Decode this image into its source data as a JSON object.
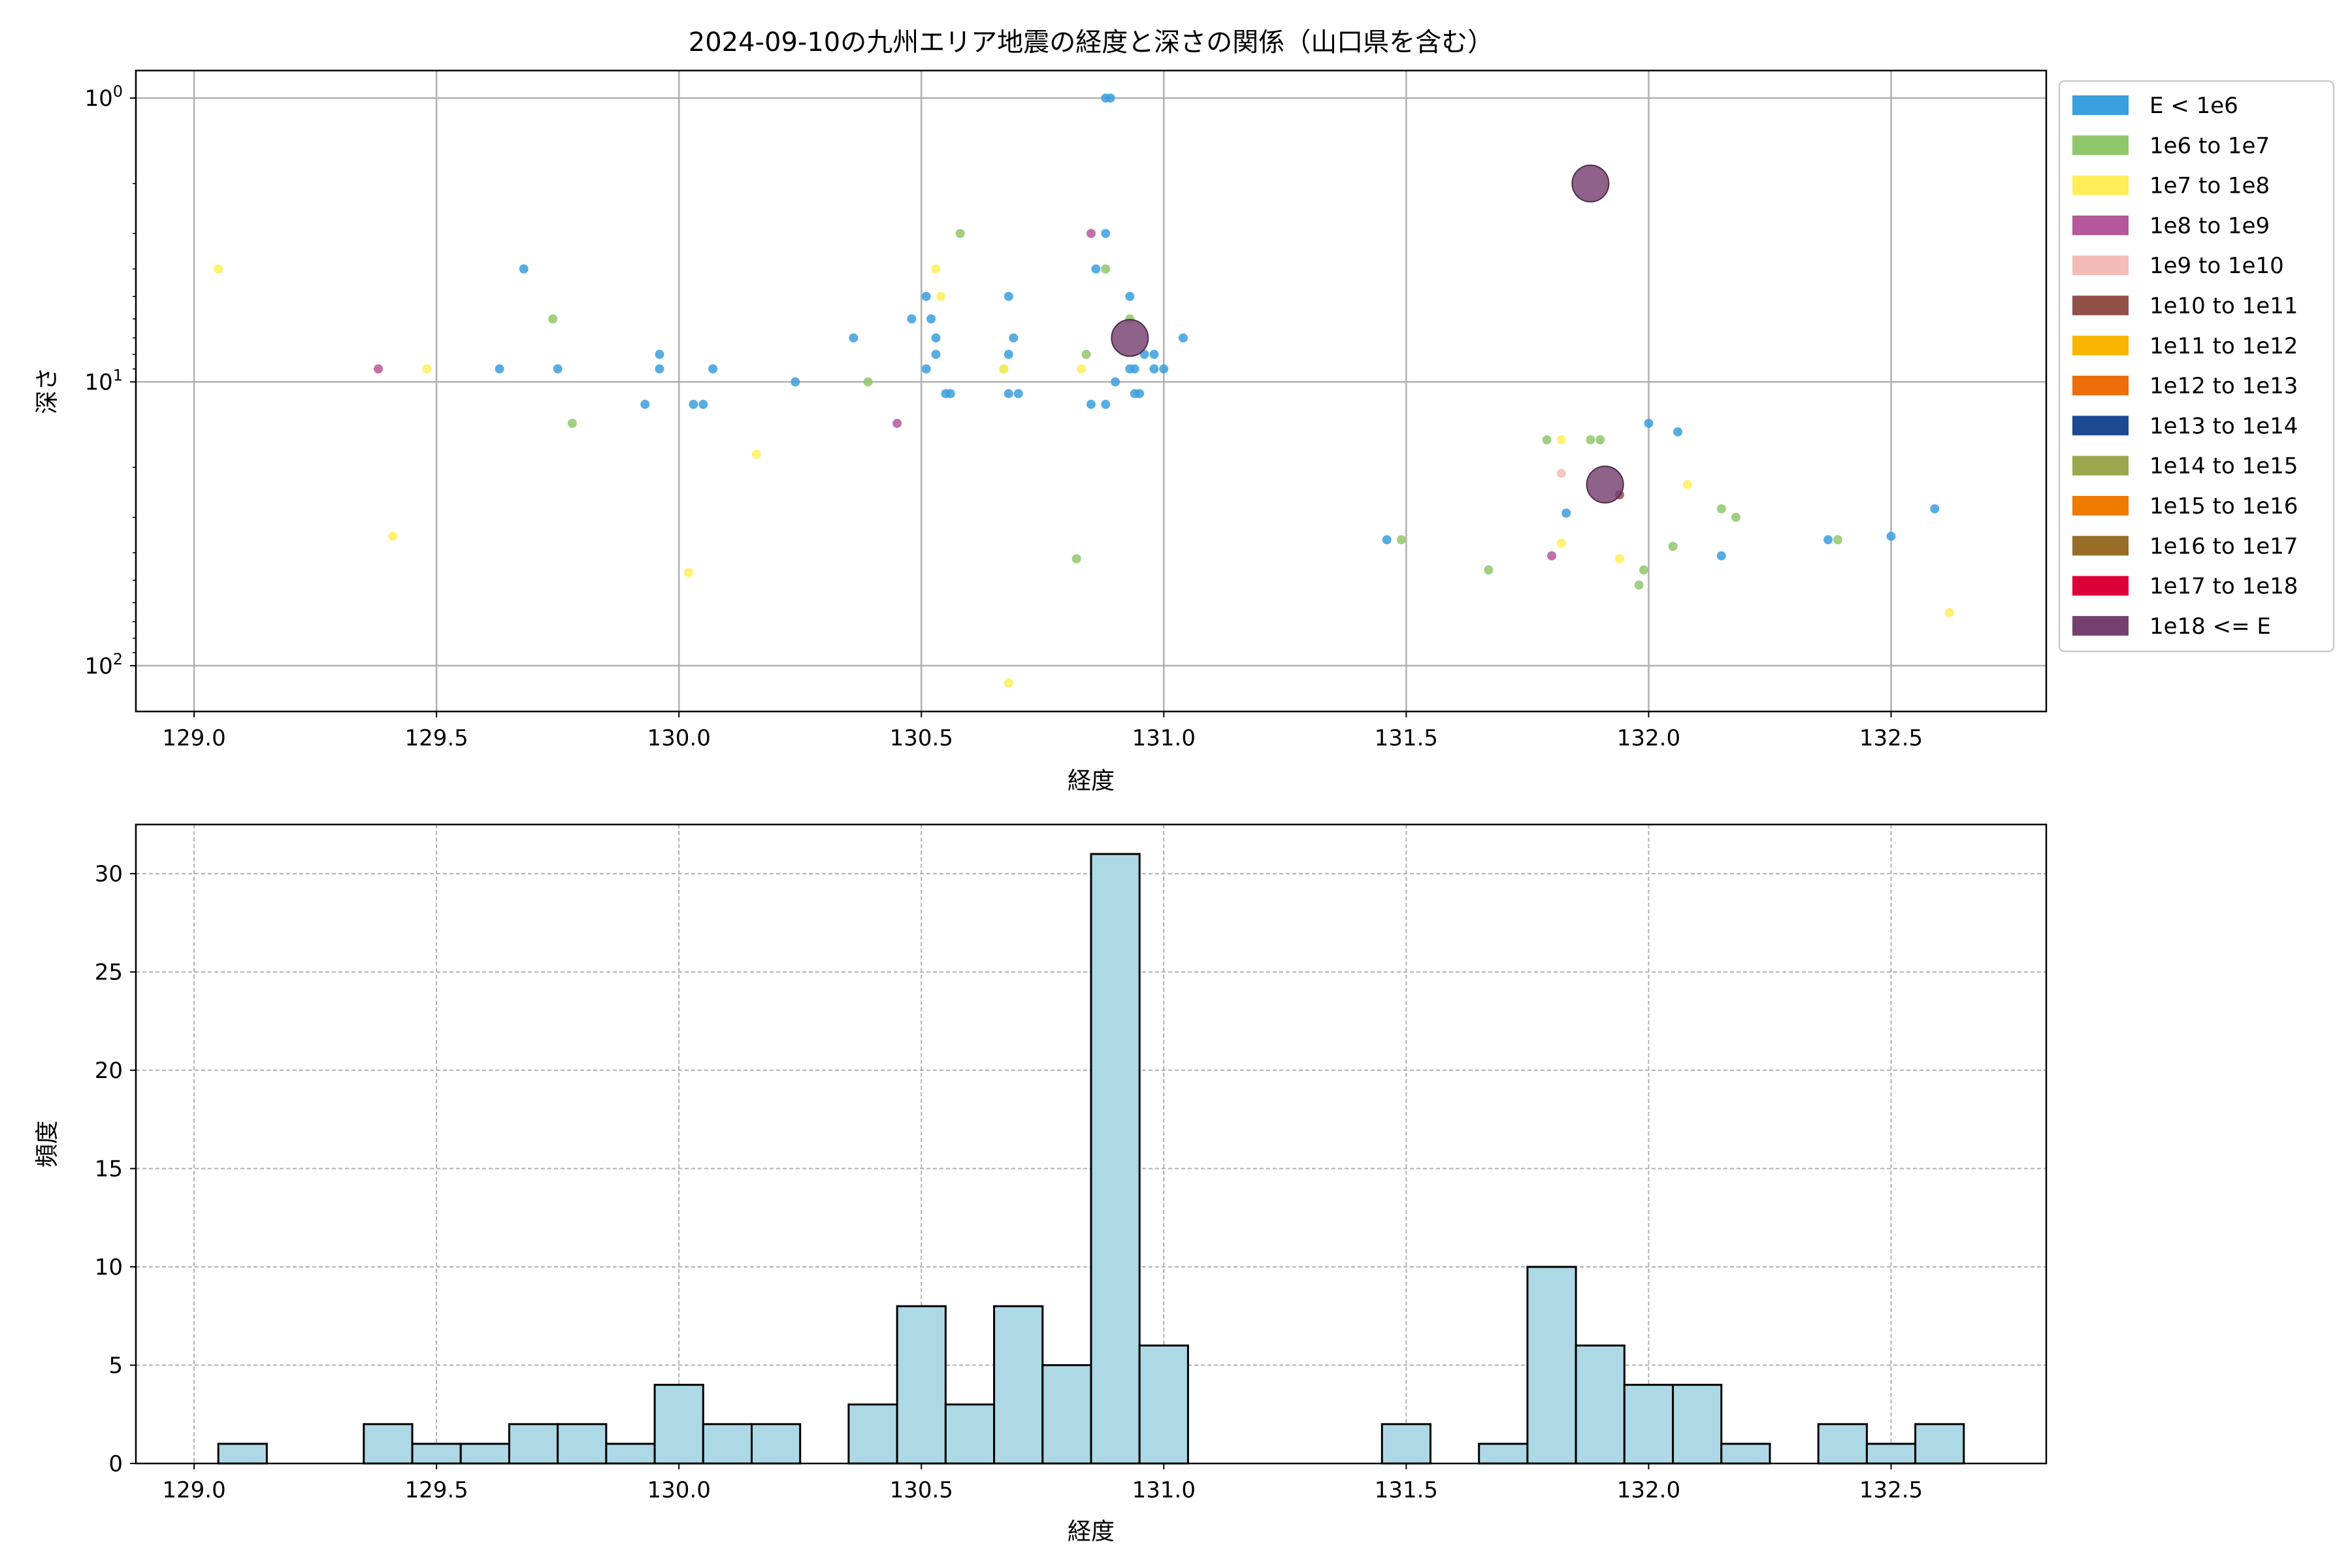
{
  "chart_data": [
    {
      "type": "scatter",
      "title": "2024-09-10の九州エリア地震の経度と深さの関係（山口県を含む）",
      "xlabel": "経度",
      "ylabel": "深さ",
      "xlim": [
        128.88,
        132.82
      ],
      "ylim": [
        145,
        0.8
      ],
      "yscale": "log",
      "y_inverted": true,
      "grid": true,
      "x_ticks": [
        "129.0",
        "129.5",
        "130.0",
        "130.5",
        "131.0",
        "131.5",
        "132.0",
        "132.5"
      ],
      "x_tick_values": [
        129.0,
        129.5,
        130.0,
        130.5,
        131.0,
        131.5,
        132.0,
        132.5
      ],
      "y_ticks": [
        {
          "value": 1,
          "base": "10",
          "exp": "0"
        },
        {
          "value": 10,
          "base": "10",
          "exp": "1"
        },
        {
          "value": 100,
          "base": "10",
          "exp": "2"
        }
      ],
      "legend_position": "outside right, top",
      "legend": [
        {
          "label": "E < 1e6",
          "color": "#3a9fdd"
        },
        {
          "label": "1e6 to 1e7",
          "color": "#8fc76a"
        },
        {
          "label": "1e7 to 1e8",
          "color": "#ffee58"
        },
        {
          "label": "1e8 to 1e9",
          "color": "#b5589b"
        },
        {
          "label": "1e9 to 1e10",
          "color": "#f5bcb5"
        },
        {
          "label": "1e10 to 1e11",
          "color": "#925049"
        },
        {
          "label": "1e11 to 1e12",
          "color": "#f8b600"
        },
        {
          "label": "1e12 to 1e13",
          "color": "#ed6d0a"
        },
        {
          "label": "1e13 to 1e14",
          "color": "#1b4a93"
        },
        {
          "label": "1e14 to 1e15",
          "color": "#9ba84e"
        },
        {
          "label": "1e15 to 1e16",
          "color": "#ee7a00"
        },
        {
          "label": "1e16 to 1e17",
          "color": "#976d27"
        },
        {
          "label": "1e17 to 1e18",
          "color": "#dd0038"
        },
        {
          "label": "1e18 <= E",
          "color": "#75406f"
        }
      ],
      "points": [
        {
          "x": 129.05,
          "y": 4,
          "c": 2,
          "s": 1
        },
        {
          "x": 129.38,
          "y": 9,
          "c": 3,
          "s": 1
        },
        {
          "x": 129.41,
          "y": 35,
          "c": 2,
          "s": 1
        },
        {
          "x": 129.48,
          "y": 9,
          "c": 2,
          "s": 1
        },
        {
          "x": 129.63,
          "y": 9,
          "c": 0,
          "s": 1
        },
        {
          "x": 129.68,
          "y": 4,
          "c": 0,
          "s": 1
        },
        {
          "x": 129.74,
          "y": 6,
          "c": 1,
          "s": 1
        },
        {
          "x": 129.75,
          "y": 9,
          "c": 0,
          "s": 1
        },
        {
          "x": 129.78,
          "y": 14,
          "c": 1,
          "s": 1
        },
        {
          "x": 129.93,
          "y": 12,
          "c": 0,
          "s": 1
        },
        {
          "x": 129.96,
          "y": 8,
          "c": 0,
          "s": 1
        },
        {
          "x": 129.96,
          "y": 9,
          "c": 0,
          "s": 1
        },
        {
          "x": 130.02,
          "y": 47,
          "c": 2,
          "s": 1
        },
        {
          "x": 130.03,
          "y": 12,
          "c": 0,
          "s": 1
        },
        {
          "x": 130.05,
          "y": 12,
          "c": 0,
          "s": 1
        },
        {
          "x": 130.07,
          "y": 9,
          "c": 0,
          "s": 1
        },
        {
          "x": 130.16,
          "y": 18,
          "c": 2,
          "s": 1
        },
        {
          "x": 130.24,
          "y": 10,
          "c": 0,
          "s": 1
        },
        {
          "x": 130.36,
          "y": 7,
          "c": 0,
          "s": 1
        },
        {
          "x": 130.39,
          "y": 10,
          "c": 1,
          "s": 1
        },
        {
          "x": 130.45,
          "y": 14,
          "c": 3,
          "s": 1
        },
        {
          "x": 130.48,
          "y": 6,
          "c": 0,
          "s": 1
        },
        {
          "x": 130.51,
          "y": 5,
          "c": 0,
          "s": 1
        },
        {
          "x": 130.51,
          "y": 9,
          "c": 0,
          "s": 1
        },
        {
          "x": 130.52,
          "y": 6,
          "c": 0,
          "s": 1
        },
        {
          "x": 130.53,
          "y": 7,
          "c": 0,
          "s": 1
        },
        {
          "x": 130.53,
          "y": 8,
          "c": 0,
          "s": 1
        },
        {
          "x": 130.53,
          "y": 4,
          "c": 2,
          "s": 1
        },
        {
          "x": 130.54,
          "y": 5,
          "c": 2,
          "s": 1
        },
        {
          "x": 130.55,
          "y": 11,
          "c": 0,
          "s": 1
        },
        {
          "x": 130.56,
          "y": 11,
          "c": 0,
          "s": 1
        },
        {
          "x": 130.58,
          "y": 3,
          "c": 1,
          "s": 1
        },
        {
          "x": 130.67,
          "y": 9,
          "c": 1,
          "s": 1
        },
        {
          "x": 130.67,
          "y": 9,
          "c": 2,
          "s": 1
        },
        {
          "x": 130.68,
          "y": 5,
          "c": 0,
          "s": 1
        },
        {
          "x": 130.68,
          "y": 8,
          "c": 0,
          "s": 1
        },
        {
          "x": 130.68,
          "y": 11,
          "c": 0,
          "s": 1
        },
        {
          "x": 130.69,
          "y": 7,
          "c": 0,
          "s": 1
        },
        {
          "x": 130.7,
          "y": 11,
          "c": 0,
          "s": 1
        },
        {
          "x": 130.68,
          "y": 115,
          "c": 2,
          "s": 1
        },
        {
          "x": 130.82,
          "y": 42,
          "c": 1,
          "s": 1
        },
        {
          "x": 130.83,
          "y": 9,
          "c": 2,
          "s": 1
        },
        {
          "x": 130.84,
          "y": 8,
          "c": 1,
          "s": 1
        },
        {
          "x": 130.85,
          "y": 12,
          "c": 0,
          "s": 1
        },
        {
          "x": 130.85,
          "y": 3,
          "c": 3,
          "s": 1
        },
        {
          "x": 130.86,
          "y": 4,
          "c": 0,
          "s": 1
        },
        {
          "x": 130.88,
          "y": 1,
          "c": 0,
          "s": 1
        },
        {
          "x": 130.89,
          "y": 1,
          "c": 0,
          "s": 1
        },
        {
          "x": 130.88,
          "y": 3,
          "c": 0,
          "s": 1
        },
        {
          "x": 130.88,
          "y": 4,
          "c": 1,
          "s": 1
        },
        {
          "x": 130.88,
          "y": 12,
          "c": 0,
          "s": 1
        },
        {
          "x": 130.9,
          "y": 10,
          "c": 0,
          "s": 1
        },
        {
          "x": 130.93,
          "y": 5,
          "c": 0,
          "s": 1
        },
        {
          "x": 130.93,
          "y": 6,
          "c": 1,
          "s": 1
        },
        {
          "x": 130.93,
          "y": 9,
          "c": 0,
          "s": 1
        },
        {
          "x": 130.94,
          "y": 9,
          "c": 0,
          "s": 1
        },
        {
          "x": 130.94,
          "y": 11,
          "c": 0,
          "s": 1
        },
        {
          "x": 130.95,
          "y": 11,
          "c": 0,
          "s": 1
        },
        {
          "x": 130.96,
          "y": 8,
          "c": 0,
          "s": 1
        },
        {
          "x": 130.98,
          "y": 8,
          "c": 0,
          "s": 1
        },
        {
          "x": 130.98,
          "y": 9,
          "c": 0,
          "s": 1
        },
        {
          "x": 131.0,
          "y": 9,
          "c": 0,
          "s": 1
        },
        {
          "x": 131.04,
          "y": 7,
          "c": 0,
          "s": 1
        },
        {
          "x": 130.93,
          "y": 7,
          "c": 13,
          "s": 5
        },
        {
          "x": 131.46,
          "y": 36,
          "c": 0,
          "s": 1
        },
        {
          "x": 131.49,
          "y": 36,
          "c": 1,
          "s": 1
        },
        {
          "x": 131.67,
          "y": 46,
          "c": 1,
          "s": 1
        },
        {
          "x": 131.79,
          "y": 16,
          "c": 1,
          "s": 1
        },
        {
          "x": 131.8,
          "y": 41,
          "c": 3,
          "s": 1
        },
        {
          "x": 131.82,
          "y": 16,
          "c": 2,
          "s": 1
        },
        {
          "x": 131.82,
          "y": 21,
          "c": 4,
          "s": 1
        },
        {
          "x": 131.82,
          "y": 37,
          "c": 2,
          "s": 1
        },
        {
          "x": 131.83,
          "y": 29,
          "c": 0,
          "s": 1
        },
        {
          "x": 131.88,
          "y": 2,
          "c": 13,
          "s": 5
        },
        {
          "x": 131.88,
          "y": 16,
          "c": 1,
          "s": 1
        },
        {
          "x": 131.9,
          "y": 16,
          "c": 1,
          "s": 1
        },
        {
          "x": 131.91,
          "y": 23,
          "c": 13,
          "s": 5
        },
        {
          "x": 131.94,
          "y": 25,
          "c": 5,
          "s": 1
        },
        {
          "x": 131.94,
          "y": 42,
          "c": 2,
          "s": 1
        },
        {
          "x": 131.98,
          "y": 52,
          "c": 1,
          "s": 1
        },
        {
          "x": 131.99,
          "y": 46,
          "c": 1,
          "s": 1
        },
        {
          "x": 132.0,
          "y": 14,
          "c": 0,
          "s": 1
        },
        {
          "x": 132.05,
          "y": 38,
          "c": 1,
          "s": 1
        },
        {
          "x": 132.06,
          "y": 15,
          "c": 0,
          "s": 1
        },
        {
          "x": 132.08,
          "y": 23,
          "c": 2,
          "s": 1
        },
        {
          "x": 132.15,
          "y": 28,
          "c": 1,
          "s": 1
        },
        {
          "x": 132.15,
          "y": 41,
          "c": 0,
          "s": 1
        },
        {
          "x": 132.18,
          "y": 30,
          "c": 1,
          "s": 1
        },
        {
          "x": 132.37,
          "y": 36,
          "c": 0,
          "s": 1
        },
        {
          "x": 132.39,
          "y": 36,
          "c": 1,
          "s": 1
        },
        {
          "x": 132.5,
          "y": 35,
          "c": 0,
          "s": 1
        },
        {
          "x": 132.59,
          "y": 28,
          "c": 0,
          "s": 1
        },
        {
          "x": 132.62,
          "y": 65,
          "c": 2,
          "s": 1
        }
      ]
    },
    {
      "type": "bar",
      "title": "",
      "xlabel": "経度",
      "ylabel": "頻度",
      "xlim": [
        128.88,
        132.82
      ],
      "ylim": [
        0,
        32.5
      ],
      "grid": true,
      "grid_style": "dashed",
      "x_ticks": [
        "129.0",
        "129.5",
        "130.0",
        "130.5",
        "131.0",
        "131.5",
        "132.0",
        "132.5"
      ],
      "x_tick_values": [
        129.0,
        129.5,
        130.0,
        130.5,
        131.0,
        131.5,
        132.0,
        132.5
      ],
      "y_ticks": [
        "0",
        "5",
        "10",
        "15",
        "20",
        "25",
        "30"
      ],
      "y_tick_values": [
        0,
        5,
        10,
        15,
        20,
        25,
        30
      ],
      "bar_color": "#add8e6",
      "bar_edge": "#000000",
      "bin_start": 129.05,
      "bin_width": 0.1,
      "values": [
        1,
        0,
        0,
        2,
        1,
        1,
        2,
        2,
        1,
        4,
        2,
        2,
        0,
        3,
        8,
        3,
        8,
        5,
        31,
        6,
        0,
        0,
        0,
        0,
        2,
        0,
        1,
        10,
        6,
        4,
        4,
        1,
        0,
        2,
        1,
        2
      ]
    }
  ]
}
